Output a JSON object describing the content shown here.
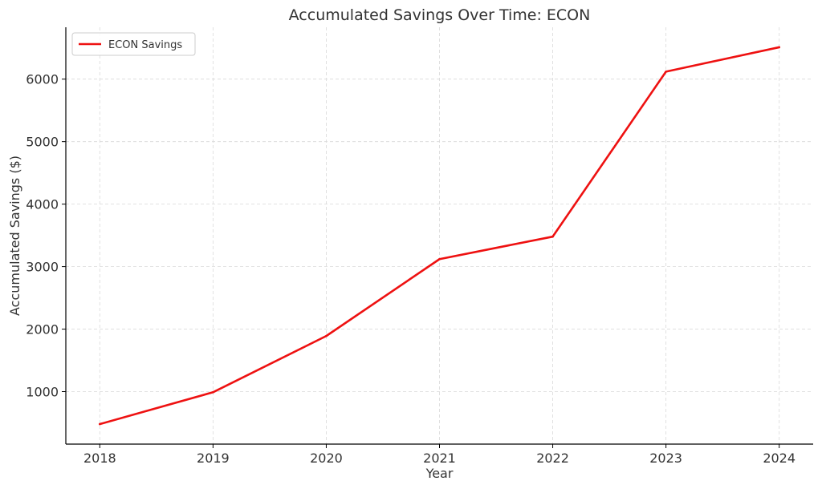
{
  "chart_data": {
    "type": "line",
    "title": "Accumulated Savings Over Time: ECON",
    "xlabel": "Year",
    "ylabel": "Accumulated Savings ($)",
    "x": [
      2018,
      2019,
      2020,
      2021,
      2022,
      2023,
      2024
    ],
    "series": [
      {
        "name": "ECON Savings",
        "color": "#ee1111",
        "values": [
          480,
          990,
          1890,
          3120,
          3480,
          6120,
          6510
        ]
      }
    ],
    "xlim": [
      2017.7,
      2024.3
    ],
    "ylim": [
      160,
      6830
    ],
    "yticks": [
      1000,
      2000,
      3000,
      4000,
      5000,
      6000
    ],
    "grid": true,
    "legend_position": "top-left"
  }
}
